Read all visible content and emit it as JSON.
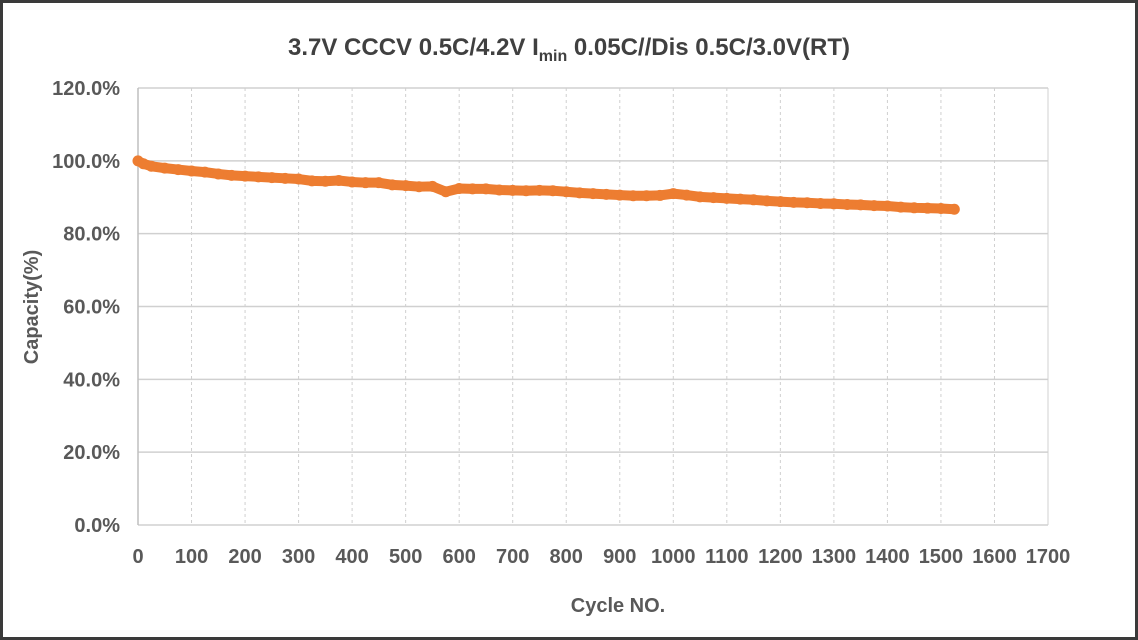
{
  "chart_data": {
    "type": "scatter",
    "title": "3.7V  CCCV 0.5C/4.2V  I",
    "title_sub": "min",
    "title_rest": " 0.05C//Dis 0.5C/3.0V(RT)",
    "xlabel": "Cycle NO.",
    "ylabel": "Capacity(%)",
    "xlim": [
      0,
      1700
    ],
    "ylim": [
      0,
      120
    ],
    "xticks": [
      "0",
      "100",
      "200",
      "300",
      "400",
      "500",
      "600",
      "700",
      "800",
      "900",
      "1000",
      "1100",
      "1200",
      "1300",
      "1400",
      "1500",
      "1600",
      "1700"
    ],
    "yticks": [
      "0.0%",
      "20.0%",
      "40.0%",
      "60.0%",
      "80.0%",
      "100.0%",
      "120.0%"
    ],
    "grid": true,
    "color": "#ED7D31",
    "x": [
      0,
      10,
      25,
      50,
      75,
      100,
      125,
      150,
      175,
      200,
      225,
      250,
      275,
      300,
      325,
      350,
      375,
      400,
      425,
      450,
      475,
      500,
      525,
      550,
      575,
      600,
      625,
      650,
      675,
      700,
      725,
      750,
      775,
      800,
      825,
      850,
      875,
      900,
      925,
      950,
      975,
      1000,
      1025,
      1050,
      1075,
      1100,
      1125,
      1150,
      1175,
      1200,
      1225,
      1250,
      1275,
      1300,
      1325,
      1350,
      1375,
      1400,
      1425,
      1450,
      1475,
      1500,
      1525
    ],
    "y": [
      100,
      99.2,
      98.5,
      98.0,
      97.6,
      97.2,
      96.9,
      96.4,
      96.0,
      95.8,
      95.6,
      95.4,
      95.2,
      95.0,
      94.5,
      94.4,
      94.6,
      94.2,
      94.0,
      94.0,
      93.4,
      93.2,
      92.9,
      93.0,
      91.5,
      92.4,
      92.3,
      92.3,
      92.0,
      91.9,
      91.8,
      91.9,
      91.8,
      91.5,
      91.2,
      91.0,
      90.8,
      90.6,
      90.4,
      90.4,
      90.5,
      91.0,
      90.6,
      90.1,
      89.9,
      89.7,
      89.5,
      89.3,
      89.0,
      88.8,
      88.6,
      88.5,
      88.3,
      88.2,
      88.0,
      87.9,
      87.7,
      87.6,
      87.3,
      87.1,
      87.0,
      86.9,
      86.7
    ]
  }
}
